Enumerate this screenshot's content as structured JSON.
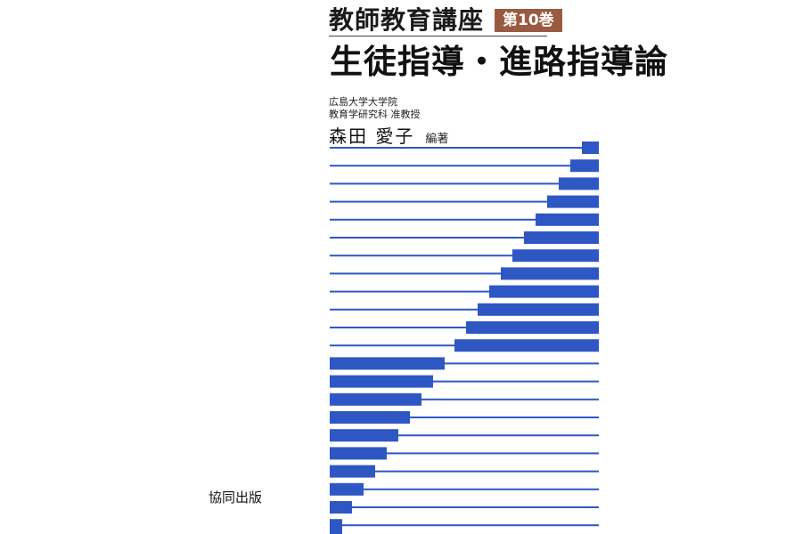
{
  "cover": {
    "series_title": "教師教育講座",
    "volume_badge": "第10巻",
    "book_title": "生徒指導・進路指導論",
    "author_affiliation_1": "広島大学大学院",
    "author_affiliation_2": "教育学研究科 准教授",
    "author_name": "森田 愛子",
    "author_role": "編著",
    "publisher": "協同出版",
    "colors": {
      "stripe_blue": "#2f57c4",
      "badge_brown": "#9a5a3f",
      "background": "#ffffff"
    }
  }
}
